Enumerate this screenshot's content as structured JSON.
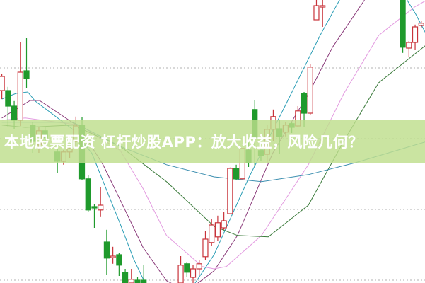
{
  "headline": "本地股票配资 杠杆炒股APP：放大收益，风险几何？",
  "colors": {
    "up": "#c8333a",
    "down": "#1f9a2c",
    "banner": "#bede8c",
    "grid": "#b0b0b0"
  },
  "chart_data": {
    "type": "candlestick",
    "title": "",
    "xlabel": "",
    "ylabel": "",
    "xlim": [
      -0.3,
      68.6
    ],
    "ylim": [
      0,
      100
    ],
    "grid": true,
    "gridlines": [
      1,
      26,
      51,
      76
    ],
    "legend": "none",
    "candles": [
      [
        0,
        68,
        73.8,
        65,
        73
      ],
      [
        1,
        68,
        69.3,
        55,
        62.5
      ],
      [
        2,
        62.5,
        64.3,
        54.3,
        57.5
      ],
      [
        3,
        57.5,
        85,
        55.5,
        74.5
      ],
      [
        4,
        75,
        86.5,
        68.8,
        72.3
      ],
      [
        5,
        55.8,
        57,
        46,
        50
      ],
      [
        6,
        48.8,
        55,
        46,
        53.8
      ],
      [
        7,
        53.8,
        55,
        49,
        51.3
      ],
      [
        9,
        46.3,
        48,
        38.8,
        43
      ],
      [
        10,
        43,
        47,
        41.8,
        46.3
      ],
      [
        11,
        46.3,
        48,
        44,
        47.5
      ],
      [
        12,
        50,
        58.8,
        48,
        55.5
      ],
      [
        13,
        55.8,
        58.5,
        36.3,
        36.8
      ],
      [
        14,
        36.8,
        38,
        25,
        25.8
      ],
      [
        15,
        27,
        28,
        19.5,
        26.5
      ],
      [
        16,
        25.8,
        33.8,
        23.3,
        27.5
      ],
      [
        17,
        14.5,
        18.8,
        3,
        8.8
      ],
      [
        18,
        9,
        12.8,
        6.8,
        9.5
      ],
      [
        19,
        10,
        10.5,
        2.5,
        6.3
      ],
      [
        20,
        3.8,
        5,
        0,
        0
      ],
      [
        21,
        0,
        5,
        0,
        1.3
      ],
      [
        22,
        1,
        2,
        0,
        0
      ],
      [
        23,
        1,
        6.3,
        0,
        0
      ],
      [
        29,
        0,
        9.5,
        0,
        6.3
      ],
      [
        30,
        6.8,
        7.5,
        2,
        3.8
      ],
      [
        31,
        2,
        6.3,
        0,
        5
      ],
      [
        32,
        5,
        8,
        3,
        6.8
      ],
      [
        33,
        9.3,
        18.3,
        8,
        15.5
      ],
      [
        34,
        14.3,
        22.5,
        13,
        20.5
      ],
      [
        35,
        16.3,
        23.8,
        15,
        21.3
      ],
      [
        36,
        19.5,
        25,
        18.8,
        22
      ],
      [
        37,
        24.5,
        40.8,
        24.5,
        40.5
      ],
      [
        38,
        40.5,
        41.8,
        36.3,
        36.8
      ],
      [
        39,
        36.8,
        47.5,
        36.8,
        47.5
      ],
      [
        40,
        47,
        50,
        41,
        42.5
      ],
      [
        41,
        61.3,
        64.5,
        41.3,
        51.3
      ],
      [
        42,
        46.8,
        48,
        43,
        45
      ],
      [
        43,
        45.5,
        55.8,
        42.3,
        54.3
      ],
      [
        44,
        54.3,
        61.3,
        50,
        58.8
      ],
      [
        45,
        54.5,
        57.5,
        45.5,
        51.8
      ],
      [
        46,
        53.3,
        56.8,
        51.8,
        55.8
      ],
      [
        47,
        56.3,
        57,
        53,
        55
      ],
      [
        48,
        55.5,
        62.5,
        55,
        60.8
      ],
      [
        49,
        67,
        67.5,
        55,
        60
      ],
      [
        50,
        60,
        77.5,
        59.3,
        76.3
      ],
      [
        51,
        93,
        100,
        93,
        98
      ],
      [
        52,
        97.5,
        100,
        90.5,
        98
      ],
      [
        65,
        100,
        100,
        81.3,
        83.3
      ],
      [
        66,
        83,
        85.5,
        80,
        85
      ],
      [
        67,
        85,
        91.3,
        82.5,
        90.5
      ],
      [
        68,
        91,
        92.5,
        90,
        91.8
      ]
    ],
    "candle_fields": [
      "index",
      "open",
      "high",
      "low",
      "close"
    ],
    "series": [
      {
        "color": "#2a9db5",
        "points": [
          [
            0,
            65
          ],
          [
            2.3,
            67
          ],
          [
            4.2,
            67.5
          ],
          [
            5.4,
            64.3
          ],
          [
            11.5,
            54.3
          ],
          [
            14.6,
            45.8
          ],
          [
            16.9,
            33.3
          ],
          [
            19.2,
            20.8
          ],
          [
            21.4,
            8.3
          ],
          [
            23.5,
            -1.3
          ],
          [
            29.8,
            -5
          ],
          [
            34.4,
            10
          ],
          [
            40.1,
            37.5
          ],
          [
            45.9,
            62.5
          ],
          [
            51.6,
            87.5
          ],
          [
            55,
            101
          ],
          [
            65.4,
            101
          ],
          [
            67.1,
            95
          ],
          [
            68.9,
            87.5
          ]
        ]
      },
      {
        "color": "#8a3a7a",
        "points": [
          [
            0,
            58.3
          ],
          [
            4.6,
            64.5
          ],
          [
            6.1,
            64.5
          ],
          [
            9.2,
            60
          ],
          [
            12.6,
            55
          ],
          [
            16.4,
            41.8
          ],
          [
            19.2,
            29.3
          ],
          [
            22.9,
            12.5
          ],
          [
            26.7,
            0.8
          ],
          [
            30,
            -3
          ],
          [
            34.4,
            4.3
          ],
          [
            38.2,
            16.8
          ],
          [
            43.9,
            45.8
          ],
          [
            49.7,
            66.8
          ],
          [
            53.6,
            83.3
          ],
          [
            58.8,
            100
          ]
        ]
      },
      {
        "color": "#e39be0",
        "points": [
          [
            0,
            57.5
          ],
          [
            3.8,
            58.3
          ],
          [
            12.6,
            55.8
          ],
          [
            19.2,
            46.8
          ],
          [
            22.9,
            33.3
          ],
          [
            26.7,
            16.8
          ],
          [
            32.5,
            5.8
          ],
          [
            34.4,
            5
          ],
          [
            36.4,
            5.8
          ],
          [
            42.1,
            16.8
          ],
          [
            49.7,
            41.8
          ],
          [
            55.4,
            66.8
          ],
          [
            61.1,
            87.5
          ],
          [
            66.9,
            97.5
          ],
          [
            68.9,
            100
          ]
        ]
      },
      {
        "color": "#3a7a3a",
        "points": [
          [
            0,
            55.8
          ],
          [
            3.8,
            55
          ],
          [
            11.5,
            55.8
          ],
          [
            19.2,
            48.3
          ],
          [
            26.7,
            35.8
          ],
          [
            34.4,
            20
          ],
          [
            38.2,
            16.8
          ],
          [
            43.2,
            16.3
          ],
          [
            49.7,
            27.5
          ],
          [
            55.4,
            50
          ],
          [
            61.1,
            70.8
          ],
          [
            68.9,
            84.3
          ]
        ]
      },
      {
        "color": "#3d8fb0",
        "points": [
          [
            0,
            56.8
          ],
          [
            11.5,
            56.8
          ],
          [
            19.2,
            48.3
          ],
          [
            26.7,
            41.8
          ],
          [
            34.4,
            37.5
          ],
          [
            42.1,
            35.8
          ],
          [
            49.7,
            38.3
          ],
          [
            57.3,
            42.5
          ],
          [
            68.9,
            50
          ]
        ]
      }
    ]
  }
}
